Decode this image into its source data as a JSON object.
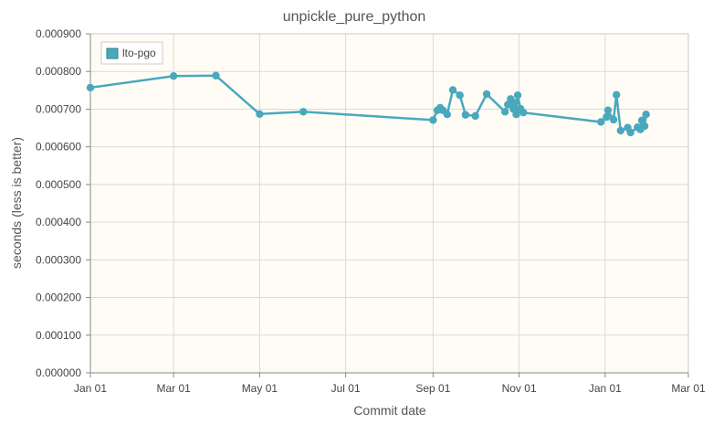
{
  "chart_data": {
    "type": "line",
    "title": "unpickle_pure_python",
    "xlabel": "Commit date",
    "ylabel": "seconds (less is better)",
    "xlim": [
      "2021-01-01",
      "2022-03-01"
    ],
    "ylim": [
      0,
      0.0009
    ],
    "x_ticks": [
      "Jan 01",
      "Mar 01",
      "May 01",
      "Jul 01",
      "Sep 01",
      "Nov 01",
      "Jan 01",
      "Mar 01"
    ],
    "x_tick_dates": [
      "2021-01-01",
      "2021-03-01",
      "2021-05-01",
      "2021-07-01",
      "2021-09-01",
      "2021-11-01",
      "2022-01-01",
      "2022-03-01"
    ],
    "y_ticks": [
      "0.000000",
      "0.000100",
      "0.000200",
      "0.000300",
      "0.000400",
      "0.000500",
      "0.000600",
      "0.000700",
      "0.000800",
      "0.000900"
    ],
    "grid": true,
    "legend_position": "top-left",
    "background_color": "#fffcf5",
    "series": [
      {
        "name": "lto-pgo",
        "color": "#4aa8bd",
        "points": [
          {
            "x": "2021-01-01",
            "y": 0.000757
          },
          {
            "x": "2021-03-01",
            "y": 0.000788
          },
          {
            "x": "2021-03-31",
            "y": 0.000789
          },
          {
            "x": "2021-05-01",
            "y": 0.000687
          },
          {
            "x": "2021-06-01",
            "y": 0.000693
          },
          {
            "x": "2021-09-01",
            "y": 0.000671
          },
          {
            "x": "2021-09-04",
            "y": 0.000697
          },
          {
            "x": "2021-09-06",
            "y": 0.000704
          },
          {
            "x": "2021-09-08",
            "y": 0.000697
          },
          {
            "x": "2021-09-11",
            "y": 0.000686
          },
          {
            "x": "2021-09-15",
            "y": 0.000751
          },
          {
            "x": "2021-09-20",
            "y": 0.000737
          },
          {
            "x": "2021-09-24",
            "y": 0.000685
          },
          {
            "x": "2021-10-01",
            "y": 0.000682
          },
          {
            "x": "2021-10-09",
            "y": 0.00074
          },
          {
            "x": "2021-10-22",
            "y": 0.000693
          },
          {
            "x": "2021-10-24",
            "y": 0.000712
          },
          {
            "x": "2021-10-26",
            "y": 0.000727
          },
          {
            "x": "2021-10-28",
            "y": 0.0007
          },
          {
            "x": "2021-10-29",
            "y": 0.000717
          },
          {
            "x": "2021-10-30",
            "y": 0.000686
          },
          {
            "x": "2021-10-31",
            "y": 0.000737
          },
          {
            "x": "2021-11-02",
            "y": 0.000701
          },
          {
            "x": "2021-11-04",
            "y": 0.000691
          },
          {
            "x": "2021-12-29",
            "y": 0.000666
          },
          {
            "x": "2022-01-02",
            "y": 0.000679
          },
          {
            "x": "2022-01-03",
            "y": 0.000697
          },
          {
            "x": "2022-01-07",
            "y": 0.000672
          },
          {
            "x": "2022-01-09",
            "y": 0.000738
          },
          {
            "x": "2022-01-12",
            "y": 0.000643
          },
          {
            "x": "2022-01-17",
            "y": 0.000651
          },
          {
            "x": "2022-01-19",
            "y": 0.000638
          },
          {
            "x": "2022-01-24",
            "y": 0.000652
          },
          {
            "x": "2022-01-26",
            "y": 0.000646
          },
          {
            "x": "2022-01-27",
            "y": 0.00067
          },
          {
            "x": "2022-01-29",
            "y": 0.000655
          },
          {
            "x": "2022-01-30",
            "y": 0.000686
          }
        ]
      }
    ]
  }
}
